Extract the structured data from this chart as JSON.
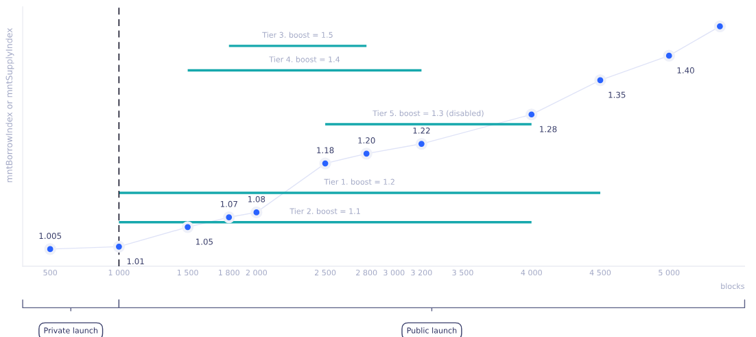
{
  "chart_data": {
    "type": "line",
    "xlabel": "blocks",
    "ylabel": "mntBorrowIndex or mntSupplyIndex",
    "xlim": [
      300,
      5550
    ],
    "ylim": [
      0.97,
      1.5
    ],
    "xticks": [
      500,
      {
        "value": 1000,
        "label": "1 000"
      },
      {
        "value": 1500,
        "label": "1 500"
      },
      {
        "value": 1800,
        "label": "1 800"
      },
      {
        "value": 2000,
        "label": "2 000"
      },
      {
        "value": 2500,
        "label": "2 500"
      },
      {
        "value": 2800,
        "label": "2 800"
      },
      {
        "value": 3000,
        "label": "3 000"
      },
      {
        "value": 3200,
        "label": "3 200"
      },
      {
        "value": 3500,
        "label": "3 500"
      },
      {
        "value": 4000,
        "label": "4 000"
      },
      {
        "value": 4500,
        "label": "4 500"
      },
      {
        "value": 5000,
        "label": "5 000"
      }
    ],
    "tick_labels": "x",
    "grid": false,
    "legend": false,
    "series": [
      {
        "color": "#2962ff",
        "marker": "circle",
        "x": [
          500,
          1000,
          1500,
          1800,
          2000,
          2500,
          2800,
          3200,
          4000,
          4500,
          5000,
          5370
        ],
        "values": [
          1.005,
          1.01,
          1.05,
          1.07,
          1.08,
          1.18,
          1.2,
          1.22,
          1.28,
          1.35,
          1.4,
          1.46
        ],
        "value_labels": [
          "1.005",
          "1.01",
          "1.05",
          "1.07",
          "1.08",
          "1.18",
          "1.20",
          "1.22",
          "1.28",
          "1.35",
          "1.40",
          null
        ]
      },
      {
        "name": "Tier 3. boost = 1.5",
        "color": "#16a8ad",
        "marker": "none",
        "x": [
          1800,
          2800
        ],
        "values": [
          1.42,
          1.42
        ]
      },
      {
        "name": "Tier 4. boost = 1.4",
        "color": "#16a8ad",
        "marker": "none",
        "x": [
          1500,
          3200
        ],
        "values": [
          1.37,
          1.37
        ]
      },
      {
        "name": "Tier 5. boost = 1.3 (disabled)",
        "color": "#16a8ad",
        "marker": "none",
        "x": [
          2500,
          4000
        ],
        "values": [
          1.26,
          1.26
        ]
      },
      {
        "name": "Tier 1. boost = 1.2",
        "color": "#16a8ad",
        "marker": "none",
        "x": [
          1000,
          4500
        ],
        "values": [
          1.12,
          1.12
        ]
      },
      {
        "name": "Tier 2. boost = 1.1",
        "color": "#16a8ad",
        "marker": "none",
        "x": [
          1000,
          4000
        ],
        "values": [
          1.06,
          1.06
        ]
      }
    ],
    "ref_lines": [
      {
        "axis": "x",
        "value": 1000,
        "color": "#1a1a2e",
        "line_style": "dashed"
      }
    ],
    "annotations": [
      "Private launch",
      "Public launch"
    ]
  }
}
